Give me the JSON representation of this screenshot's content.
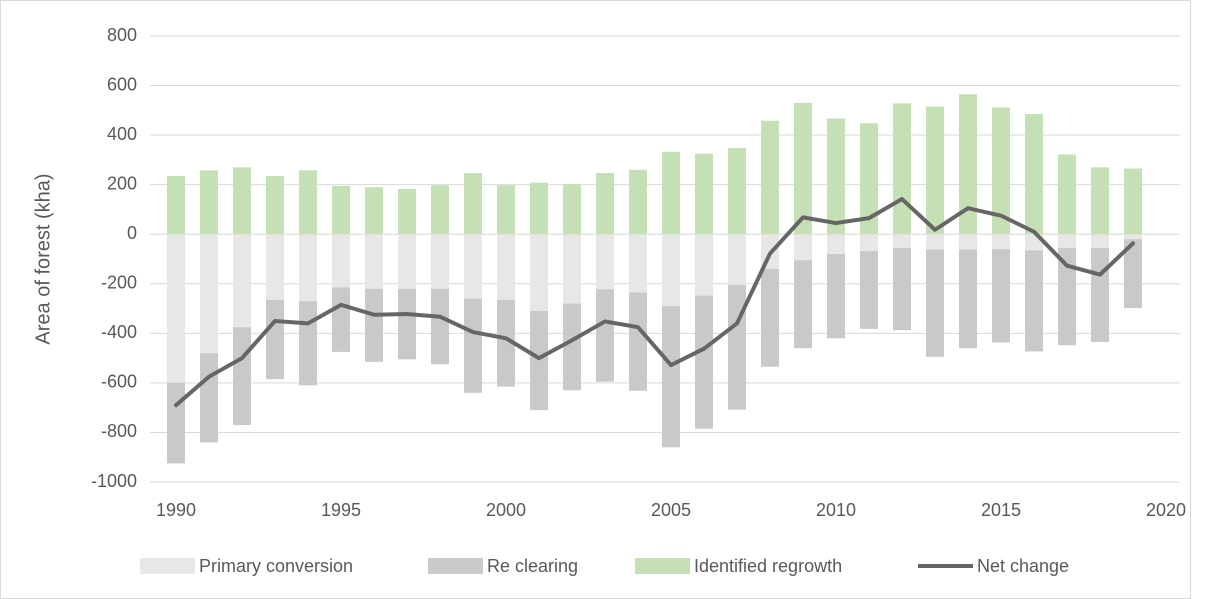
{
  "chart_data": {
    "type": "bar",
    "y_label": "Area of forest (kha)",
    "x": [
      1990,
      1991,
      1992,
      1993,
      1994,
      1995,
      1996,
      1997,
      1998,
      1999,
      2000,
      2001,
      2002,
      2003,
      2004,
      2005,
      2006,
      2007,
      2008,
      2009,
      2010,
      2011,
      2012,
      2013,
      2014,
      2015,
      2016,
      2017,
      2018,
      2019
    ],
    "series": [
      {
        "name": "Primary conversion",
        "color": "#e7e7e7",
        "kind": "bar",
        "values": [
          -600,
          -480,
          -375,
          -265,
          -270,
          -215,
          -220,
          -220,
          -220,
          -260,
          -265,
          -310,
          -280,
          -222,
          -235,
          -290,
          -248,
          -205,
          -140,
          -105,
          -80,
          -68,
          -55,
          -62,
          -62,
          -60,
          -65,
          -55,
          -55,
          -20
        ]
      },
      {
        "name": "Re clearing",
        "color": "#c9c9c9",
        "kind": "bar",
        "values": [
          -325,
          -360,
          -395,
          -320,
          -340,
          -260,
          -295,
          -285,
          -305,
          -380,
          -350,
          -400,
          -350,
          -373,
          -397,
          -570,
          -537,
          -503,
          -395,
          -355,
          -340,
          -314,
          -332,
          -433,
          -398,
          -377,
          -408,
          -393,
          -380,
          -278
        ]
      },
      {
        "name": "Identified regrowth",
        "color": "#c5e0b4",
        "kind": "bar",
        "values": [
          235,
          258,
          270,
          235,
          258,
          195,
          190,
          183,
          198,
          247,
          198,
          208,
          203,
          247,
          260,
          333,
          325,
          348,
          458,
          530,
          467,
          448,
          528,
          515,
          565,
          512,
          485,
          322,
          270,
          265
        ]
      },
      {
        "name": "Net change",
        "color": "#666666",
        "kind": "line",
        "values": [
          -690,
          -575,
          -500,
          -350,
          -360,
          -285,
          -325,
          -322,
          -333,
          -395,
          -420,
          -500,
          -428,
          -352,
          -375,
          -528,
          -462,
          -360,
          -78,
          68,
          45,
          65,
          142,
          18,
          105,
          75,
          10,
          -127,
          -163,
          -37
        ]
      }
    ],
    "xlim": [
      1990,
      2020
    ],
    "xticks": [
      1990,
      1995,
      2000,
      2005,
      2010,
      2015,
      2020
    ],
    "ylim": [
      -1000,
      800
    ],
    "yticks": [
      -1000,
      -800,
      -600,
      -400,
      -200,
      0,
      200,
      400,
      600,
      800
    ],
    "grid": true,
    "legend": "bottom"
  }
}
